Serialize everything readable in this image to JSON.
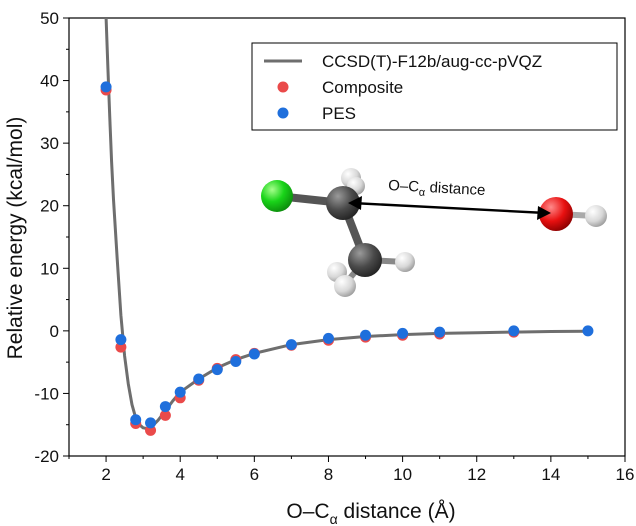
{
  "chart_data": {
    "type": "scatter",
    "title": "",
    "xlabel": "O–C",
    "xlabel_sub": "α",
    "xlabel_tail": " distance (Å)",
    "ylabel": "Relative energy (kcal/mol)",
    "xlim": [
      1,
      16
    ],
    "ylim": [
      -20,
      50
    ],
    "xticks": [
      2,
      4,
      6,
      8,
      10,
      12,
      14,
      16
    ],
    "yticks": [
      -20,
      -10,
      0,
      10,
      20,
      30,
      40,
      50
    ],
    "grid": false,
    "legend_position": "top-right",
    "series": [
      {
        "name": "CCSD(T)-F12b/aug-cc-pVQZ",
        "kind": "line",
        "color": "#6e6e6e",
        "x": [
          2.0,
          2.05,
          2.1,
          2.15,
          2.2,
          2.3,
          2.4,
          2.5,
          2.6,
          2.7,
          2.8,
          2.9,
          3.0,
          3.1,
          3.2,
          3.3,
          3.4,
          3.6,
          3.8,
          4.0,
          4.5,
          5.0,
          5.5,
          6.0,
          7.0,
          8.0,
          9.0,
          10.0,
          11.0,
          12.0,
          13.0,
          14.0,
          15.0
        ],
        "y": [
          50,
          42,
          34,
          27,
          21,
          11.5,
          2.5,
          -4,
          -8.5,
          -11.8,
          -13.9,
          -15.0,
          -15.5,
          -15.6,
          -15.4,
          -14.9,
          -14.3,
          -12.8,
          -11.2,
          -9.8,
          -7.7,
          -5.9,
          -4.6,
          -3.6,
          -2.2,
          -1.4,
          -0.9,
          -0.6,
          -0.4,
          -0.3,
          -0.2,
          -0.1,
          -0.05
        ]
      },
      {
        "name": "Composite",
        "kind": "scatter",
        "color": "#ea4a4a",
        "x": [
          2.0,
          2.4,
          2.8,
          3.2,
          3.6,
          4.0,
          4.5,
          5.0,
          5.5,
          6.0,
          7.0,
          8.0,
          9.0,
          10.0,
          11.0,
          13.0
        ],
        "y": [
          38.5,
          -2.6,
          -14.8,
          -15.9,
          -13.5,
          -10.7,
          -7.9,
          -6.0,
          -4.6,
          -3.6,
          -2.3,
          -1.5,
          -1.0,
          -0.7,
          -0.5,
          -0.2
        ]
      },
      {
        "name": "PES",
        "kind": "scatter",
        "color": "#1f6fdc",
        "x": [
          2.0,
          2.4,
          2.8,
          3.2,
          3.6,
          4.0,
          4.5,
          5.0,
          5.5,
          6.0,
          7.0,
          8.0,
          9.0,
          10.0,
          11.0,
          13.0,
          15.0
        ],
        "y": [
          39.0,
          -1.4,
          -14.2,
          -14.7,
          -12.1,
          -9.8,
          -7.7,
          -6.2,
          -4.9,
          -3.7,
          -2.2,
          -1.2,
          -0.7,
          -0.4,
          -0.2,
          0.0,
          0.0
        ]
      }
    ],
    "annotations": {
      "distance_label_main": "O–C",
      "distance_label_sub": "α",
      "distance_label_tail": " distance"
    }
  },
  "colors": {
    "carbon": "#4a4a4a",
    "chlorine": "#22dd22",
    "oxygen": "#ee1111",
    "hydrogen": "#e2e2e2"
  }
}
